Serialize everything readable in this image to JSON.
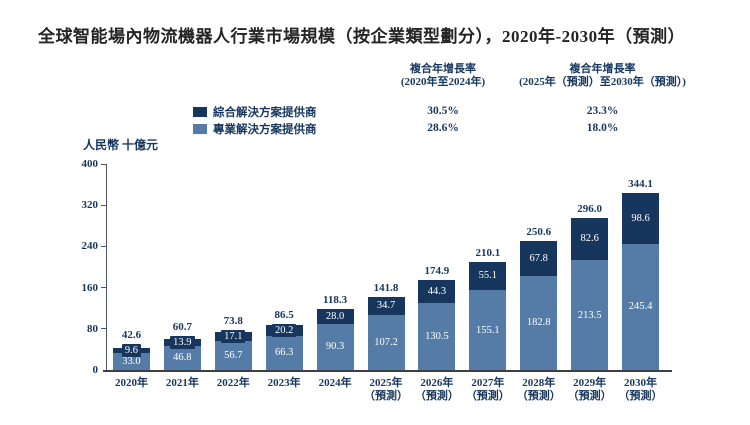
{
  "title": "全球智能場內物流機器人行業市場規模（按企業類型劃分），2020年-2030年（預測）",
  "cagr_table": {
    "col1_header_line1": "複合年增長率",
    "col1_header_line2": "(2020年至2024年)",
    "col2_header_line1": "複合年增長率",
    "col2_header_line2": "(2025年（預測）至2030年（預測）)",
    "rows": [
      {
        "label": "綜合解決方案提供商",
        "col1": "30.5%",
        "col2": "23.3%"
      },
      {
        "label": "專業解決方案提供商",
        "col1": "28.6%",
        "col2": "18.0%"
      }
    ]
  },
  "chart_data": {
    "type": "bar",
    "stacked": true,
    "unit_label": "人民幣 十億元",
    "ylim": [
      0,
      400
    ],
    "yticks": [
      0,
      80,
      160,
      240,
      320,
      400
    ],
    "grid": false,
    "categories": [
      {
        "line1": "2020年",
        "line2": ""
      },
      {
        "line1": "2021年",
        "line2": ""
      },
      {
        "line1": "2022年",
        "line2": ""
      },
      {
        "line1": "2023年",
        "line2": ""
      },
      {
        "line1": "2024年",
        "line2": ""
      },
      {
        "line1": "2025年",
        "line2": "（預測）"
      },
      {
        "line1": "2026年",
        "line2": "（預測）"
      },
      {
        "line1": "2027年",
        "line2": "（預測）"
      },
      {
        "line1": "2028年",
        "line2": "（預測）"
      },
      {
        "line1": "2029年",
        "line2": "（預測）"
      },
      {
        "line1": "2030年",
        "line2": "（預測）"
      }
    ],
    "series": [
      {
        "name": "綜合解決方案提供商",
        "color": "#16365e",
        "stack_position": "top",
        "values": [
          9.6,
          13.9,
          17.1,
          20.2,
          28.0,
          34.7,
          44.3,
          55.1,
          67.8,
          82.6,
          98.6
        ]
      },
      {
        "name": "專業解決方案提供商",
        "color": "#547ca7",
        "stack_position": "bottom",
        "values": [
          33.0,
          46.8,
          56.7,
          66.3,
          90.3,
          107.2,
          130.5,
          155.1,
          182.8,
          213.5,
          245.4
        ]
      }
    ],
    "totals": [
      42.6,
      60.7,
      73.8,
      86.5,
      118.3,
      141.8,
      174.9,
      210.1,
      250.6,
      296.0,
      344.1
    ],
    "text_color": "#17375e"
  }
}
